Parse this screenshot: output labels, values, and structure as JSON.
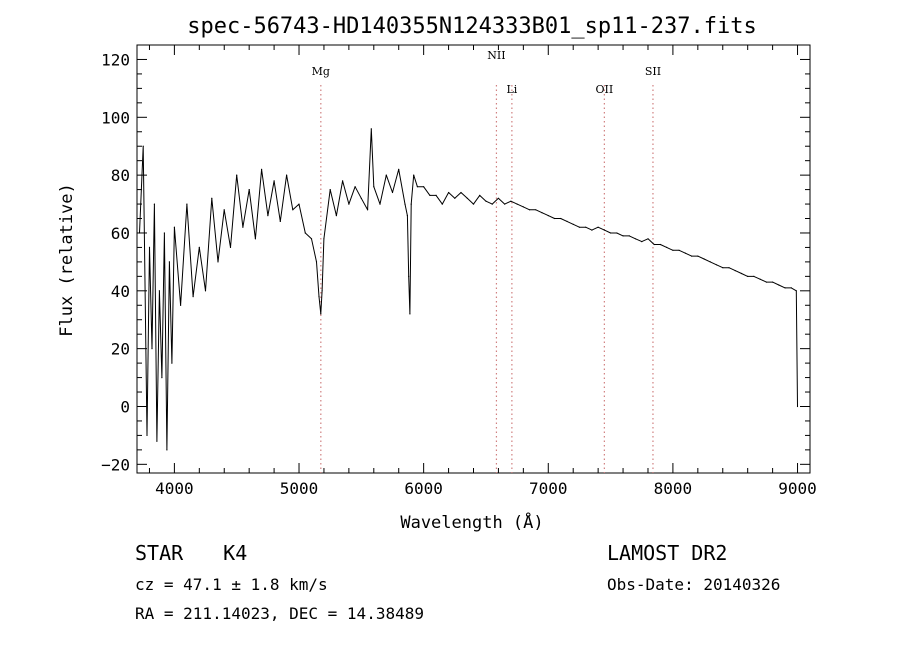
{
  "chart_data": {
    "type": "line",
    "title": "spec-56743-HD140355N124333B01_sp11-237.fits",
    "xlabel": "Wavelength (Å)",
    "ylabel": "Flux (relative)",
    "xlim": [
      3700,
      9100
    ],
    "ylim": [
      -23,
      125
    ],
    "x_ticks": [
      4000,
      5000,
      6000,
      7000,
      8000,
      9000
    ],
    "y_ticks": [
      -20,
      0,
      20,
      40,
      60,
      80,
      100,
      120
    ],
    "grid": false,
    "line_color": "#000000",
    "marker_color": "#d08080",
    "line_markers": [
      {
        "name": "Mg",
        "x": 5175
      },
      {
        "name": "NII",
        "x": 6584
      },
      {
        "name": "Li",
        "x": 6708
      },
      {
        "name": "OII",
        "x": 7450
      },
      {
        "name": "SII",
        "x": 7840
      }
    ],
    "series": [
      {
        "x": [
          3720,
          3750,
          3780,
          3800,
          3820,
          3840,
          3860,
          3880,
          3900,
          3920,
          3940,
          3960,
          3980,
          4000,
          4050,
          4100,
          4150,
          4200,
          4250,
          4300,
          4350,
          4400,
          4450,
          4500,
          4550,
          4600,
          4650,
          4700,
          4750,
          4800,
          4850,
          4900,
          4950,
          5000,
          5050,
          5100,
          5140,
          5160,
          5175,
          5185,
          5200,
          5250,
          5300,
          5350,
          5400,
          5450,
          5500,
          5550,
          5580,
          5600,
          5650,
          5700,
          5750,
          5800,
          5850,
          5870,
          5880,
          5890,
          5900,
          5920,
          5950,
          6000,
          6050,
          6100,
          6150,
          6200,
          6250,
          6300,
          6350,
          6400,
          6450,
          6500,
          6550,
          6600,
          6650,
          6700,
          6750,
          6800,
          6850,
          6900,
          6950,
          7000,
          7050,
          7100,
          7150,
          7200,
          7250,
          7300,
          7350,
          7400,
          7450,
          7500,
          7550,
          7600,
          7650,
          7700,
          7750,
          7800,
          7850,
          7900,
          7950,
          8000,
          8050,
          8100,
          8150,
          8200,
          8250,
          8300,
          8350,
          8400,
          8450,
          8500,
          8550,
          8600,
          8650,
          8700,
          8750,
          8800,
          8850,
          8900,
          8950,
          8990,
          9000
        ],
        "y": [
          60,
          90,
          -10,
          55,
          20,
          70,
          -12,
          40,
          10,
          60,
          -15,
          50,
          15,
          62,
          35,
          70,
          38,
          55,
          40,
          72,
          50,
          68,
          55,
          80,
          62,
          75,
          58,
          82,
          66,
          78,
          64,
          80,
          68,
          70,
          60,
          58,
          50,
          38,
          32,
          40,
          58,
          75,
          66,
          78,
          70,
          76,
          72,
          68,
          96,
          76,
          70,
          80,
          74,
          82,
          70,
          66,
          45,
          32,
          70,
          80,
          76,
          76,
          73,
          73,
          70,
          74,
          72,
          74,
          72,
          70,
          73,
          71,
          70,
          72,
          70,
          71,
          70,
          69,
          68,
          68,
          67,
          66,
          65,
          65,
          64,
          63,
          62,
          62,
          61,
          62,
          61,
          60,
          60,
          59,
          59,
          58,
          57,
          58,
          56,
          56,
          55,
          54,
          54,
          53,
          52,
          52,
          51,
          50,
          49,
          48,
          48,
          47,
          46,
          45,
          45,
          44,
          43,
          43,
          42,
          41,
          41,
          40,
          0
        ]
      }
    ]
  },
  "info": {
    "object": "STAR",
    "subclass": "K4",
    "survey": "LAMOST DR2",
    "cz": "cz = 47.1 ± 1.8 km/s",
    "obs_date": "Obs-Date: 20140326",
    "coords": "RA = 211.14023, DEC =  14.38489"
  }
}
